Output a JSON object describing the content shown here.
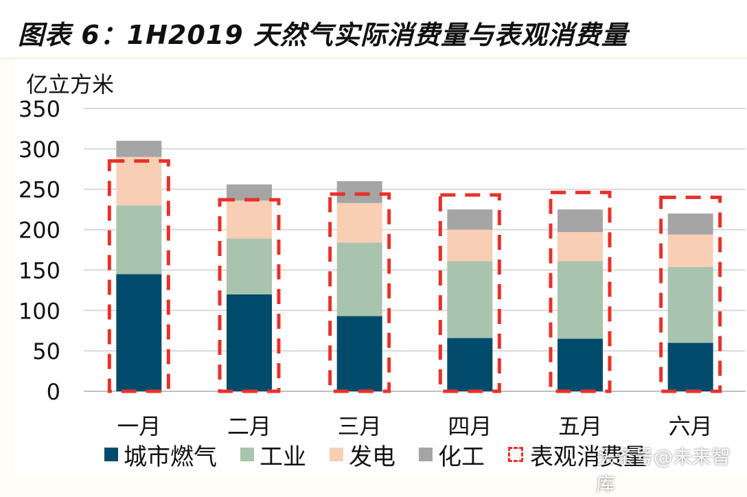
{
  "page_title": "图表 6：1H2019 天然气实际消费量与表观消费量",
  "unit_label": "亿立方米",
  "watermark": "头条号@未来智库",
  "colors": {
    "city_gas": "#004b6b",
    "industry": "#a9c4ae",
    "power": "#f8cfb5",
    "chemical": "#a5a5a5",
    "apparent": "#e8312a",
    "gridline": "#d9d9d9",
    "axis_text": "#111111"
  },
  "chart_data": {
    "type": "bar",
    "stacked": true,
    "title": "1H2019 天然气实际消费量与表观消费量",
    "ylabel": "亿立方米",
    "xlabel": "",
    "ylim": [
      0,
      350
    ],
    "yticks": [
      0,
      50,
      100,
      150,
      200,
      250,
      300,
      350
    ],
    "grid": true,
    "legend_position": "bottom",
    "categories": [
      "一月",
      "二月",
      "三月",
      "四月",
      "五月",
      "六月"
    ],
    "series": [
      {
        "name": "城市燃气",
        "key": "city_gas",
        "values": [
          145,
          120,
          93,
          66,
          65,
          60
        ]
      },
      {
        "name": "工业",
        "key": "industry",
        "values": [
          85,
          69,
          91,
          95,
          96,
          94
        ]
      },
      {
        "name": "发电",
        "key": "power",
        "values": [
          60,
          47,
          49,
          39,
          36,
          40
        ]
      },
      {
        "name": "化工",
        "key": "chemical",
        "values": [
          20,
          20,
          27,
          25,
          28,
          26
        ]
      }
    ],
    "apparent_consumption": {
      "name": "表观消费量",
      "values": [
        285,
        237,
        244,
        243,
        246,
        240
      ]
    }
  }
}
